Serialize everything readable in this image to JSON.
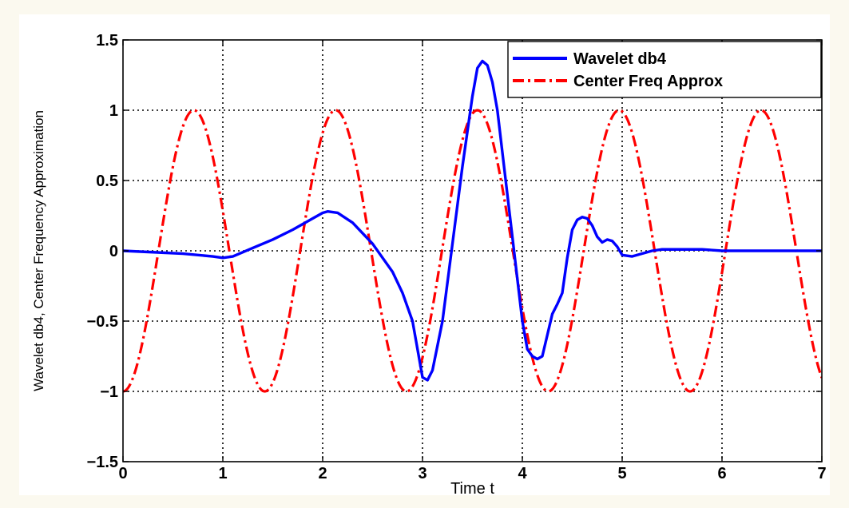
{
  "chart_data": {
    "type": "line",
    "xlabel": "Time t",
    "ylabel": "Wavelet db4, Center Frequency Approximation",
    "xlim": [
      0,
      7
    ],
    "ylim": [
      -1.5,
      1.5
    ],
    "xticks": [
      "0",
      "1",
      "2",
      "3",
      "4",
      "5",
      "6",
      "7"
    ],
    "yticks": [
      "1.5",
      "1",
      "0.5",
      "0",
      "−0.5",
      "−1",
      "−1.5"
    ],
    "grid": true,
    "legend_position": "top-right",
    "series": [
      {
        "name": "Wavelet db4",
        "color": "#0000ff",
        "style": "solid",
        "x": [
          0,
          0.3,
          0.6,
          0.9,
          1.0,
          1.1,
          1.3,
          1.5,
          1.7,
          1.9,
          2.0,
          2.05,
          2.15,
          2.3,
          2.5,
          2.7,
          2.8,
          2.9,
          2.95,
          3.0,
          3.05,
          3.1,
          3.2,
          3.3,
          3.4,
          3.5,
          3.55,
          3.6,
          3.65,
          3.7,
          3.75,
          3.8,
          3.9,
          4.0,
          4.05,
          4.1,
          4.15,
          4.2,
          4.25,
          4.3,
          4.35,
          4.4,
          4.45,
          4.5,
          4.55,
          4.6,
          4.65,
          4.7,
          4.75,
          4.8,
          4.85,
          4.9,
          4.95,
          5.0,
          5.1,
          5.2,
          5.3,
          5.4,
          5.6,
          5.8,
          6.0,
          6.5,
          7.0
        ],
        "y": [
          0,
          -0.01,
          -0.02,
          -0.04,
          -0.05,
          -0.04,
          0.02,
          0.08,
          0.15,
          0.23,
          0.27,
          0.28,
          0.27,
          0.2,
          0.05,
          -0.15,
          -0.3,
          -0.5,
          -0.7,
          -0.9,
          -0.92,
          -0.85,
          -0.5,
          0.05,
          0.6,
          1.1,
          1.3,
          1.35,
          1.32,
          1.2,
          1.0,
          0.7,
          0.1,
          -0.5,
          -0.7,
          -0.75,
          -0.77,
          -0.75,
          -0.6,
          -0.45,
          -0.38,
          -0.3,
          -0.05,
          0.15,
          0.22,
          0.24,
          0.23,
          0.18,
          0.1,
          0.06,
          0.08,
          0.07,
          0.03,
          -0.03,
          -0.04,
          -0.02,
          0.0,
          0.01,
          0.01,
          0.01,
          0.0,
          0.0,
          0.0
        ]
      },
      {
        "name": "Center Freq Approx",
        "color": "#ff0000",
        "style": "dash-dot",
        "function": "-cos(2*pi*x/1.42)",
        "period": 1.42
      }
    ]
  }
}
